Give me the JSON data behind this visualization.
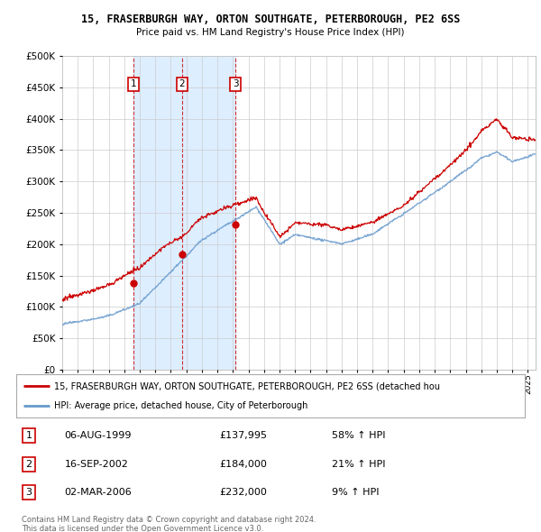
{
  "title1": "15, FRASERBURGH WAY, ORTON SOUTHGATE, PETERBOROUGH, PE2 6SS",
  "title2": "Price paid vs. HM Land Registry's House Price Index (HPI)",
  "legend_line1": "15, FRASERBURGH WAY, ORTON SOUTHGATE, PETERBOROUGH, PE2 6SS (detached hou",
  "legend_line2": "HPI: Average price, detached house, City of Peterborough",
  "transactions": [
    {
      "num": 1,
      "date": "06-AUG-1999",
      "price": "£137,995",
      "hpi": "58% ↑ HPI",
      "year": 1999.59
    },
    {
      "num": 2,
      "date": "16-SEP-2002",
      "price": "£184,000",
      "hpi": "21% ↑ HPI",
      "year": 2002.71
    },
    {
      "num": 3,
      "date": "02-MAR-2006",
      "price": "£232,000",
      "hpi": "9% ↑ HPI",
      "year": 2006.17
    }
  ],
  "footer1": "Contains HM Land Registry data © Crown copyright and database right 2024.",
  "footer2": "This data is licensed under the Open Government Licence v3.0.",
  "ylim": [
    0,
    500000
  ],
  "yticks": [
    0,
    50000,
    100000,
    150000,
    200000,
    250000,
    300000,
    350000,
    400000,
    450000,
    500000
  ],
  "red_color": "#cc0000",
  "blue_line_color": "#6699cc",
  "shade_color": "#ddeeff",
  "marker_color": "#cc0000",
  "bg_color": "#ffffff",
  "grid_color": "#cccccc",
  "fig_width": 6.0,
  "fig_height": 5.9,
  "dpi": 100
}
